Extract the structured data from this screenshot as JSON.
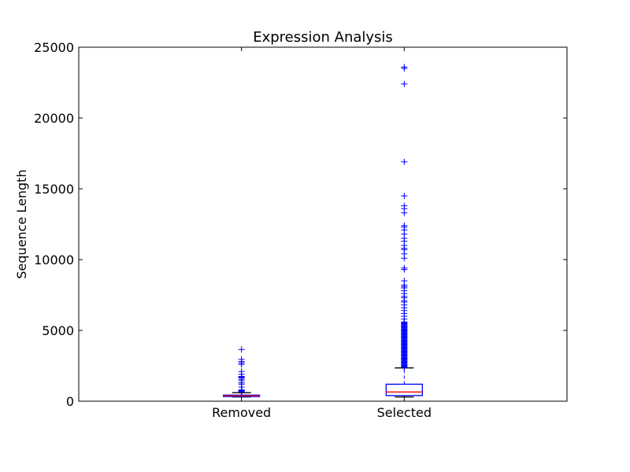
{
  "chart_data": {
    "type": "box",
    "title": "Expression Analysis",
    "xlabel": "",
    "ylabel": "Sequence Length",
    "ylim": [
      0,
      25000
    ],
    "yticks": [
      0,
      5000,
      10000,
      15000,
      20000,
      25000
    ],
    "grid": false,
    "categories": [
      "Removed",
      "Selected"
    ],
    "boxes": [
      {
        "whisker_low": 300,
        "q1": 330,
        "median": 380,
        "q3": 430,
        "whisker_high": 600,
        "outliers": [
          650,
          700,
          720,
          760,
          800,
          1000,
          1200,
          1300,
          1450,
          1550,
          1650,
          1700,
          1750,
          1900,
          2100,
          2600,
          2700,
          2800,
          2950,
          3650
        ]
      },
      {
        "whisker_low": 300,
        "q1": 400,
        "median": 650,
        "q3": 1200,
        "whisker_high": 2350,
        "outliers": [
          2400,
          2450,
          2500,
          2550,
          2600,
          2650,
          2700,
          2750,
          2800,
          2850,
          2900,
          2950,
          3000,
          3050,
          3100,
          3150,
          3200,
          3250,
          3300,
          3350,
          3400,
          3450,
          3500,
          3550,
          3600,
          3650,
          3700,
          3750,
          3800,
          3850,
          3900,
          3950,
          4000,
          4050,
          4100,
          4150,
          4200,
          4250,
          4300,
          4350,
          4400,
          4450,
          4500,
          4550,
          4600,
          4650,
          4700,
          4750,
          4800,
          4850,
          4900,
          4950,
          5000,
          5050,
          5100,
          5150,
          5200,
          5250,
          5300,
          5350,
          5400,
          5450,
          5500,
          5550,
          5600,
          5800,
          6000,
          6200,
          6400,
          6600,
          6800,
          7000,
          7100,
          7300,
          7400,
          7600,
          7800,
          8000,
          8100,
          8200,
          8500,
          9300,
          9400,
          10100,
          10400,
          10700,
          10800,
          11000,
          11300,
          11500,
          11800,
          12100,
          12300,
          12400,
          13300,
          13600,
          13800,
          14500,
          16900,
          22400,
          23500,
          23600
        ]
      }
    ],
    "colors": {
      "box": "#0000ff",
      "median": "#ff0000",
      "whisker": "#000000",
      "outlier": "#0000ff"
    }
  }
}
